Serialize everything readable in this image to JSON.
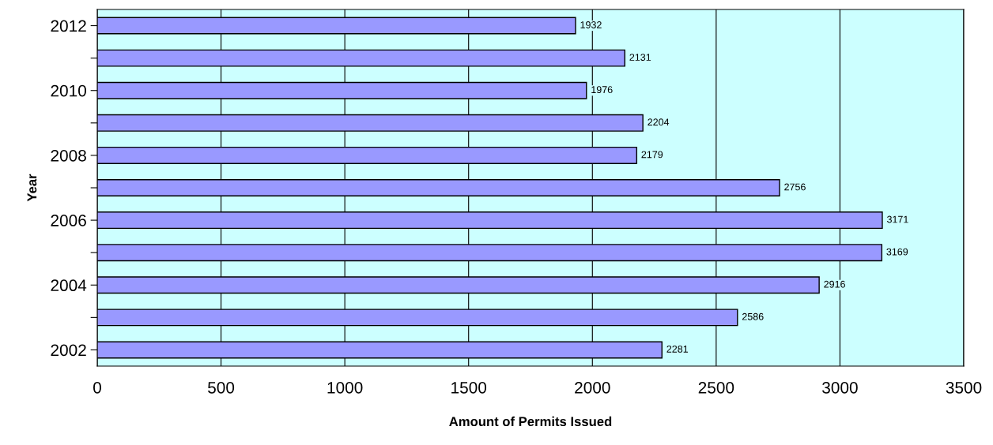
{
  "chart_data": {
    "type": "bar",
    "orientation": "horizontal",
    "xlabel": "Amount of Permits Issued",
    "ylabel": "Year",
    "categories": [
      "2012",
      null,
      "2010",
      null,
      "2008",
      null,
      "2006",
      null,
      "2004",
      null,
      "2002"
    ],
    "series": [
      {
        "color": "#9999ff",
        "values": [
          1932,
          2131,
          1976,
          2204,
          2179,
          2756,
          3171,
          3169,
          2916,
          2586,
          2281
        ]
      }
    ],
    "xlim": [
      0,
      3500
    ],
    "xticks": [
      0,
      500,
      1000,
      1500,
      2000,
      2500,
      3000,
      3500
    ],
    "grid": "x",
    "data_labels": true
  }
}
